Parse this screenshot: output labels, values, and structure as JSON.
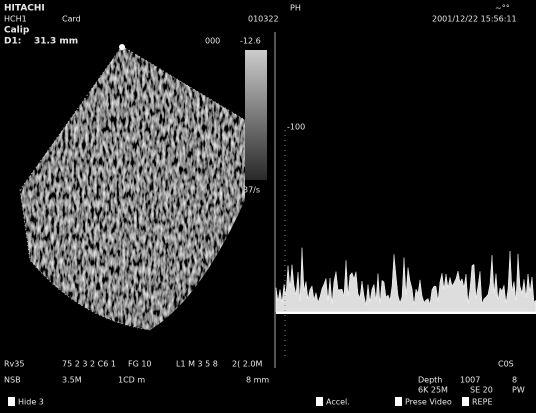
{
  "header": {
    "brand": "HITACHI",
    "probe": "HCH1",
    "preset": "Card",
    "mode": "Calip",
    "measure_label": "D1:",
    "measure_value": "31.3 mm",
    "scale_zero": "000",
    "scale_top": "-12.6",
    "center": "PH",
    "id": "010322",
    "datetime": "2001/12/22  15:56:11",
    "logo": "~°°",
    "side_label": "37/s"
  },
  "doppler": {
    "scale_label": "-100"
  },
  "footer": {
    "row1": [
      "Rv35",
      "75 2 3 2 C6 1",
      "FG 10",
      "L1 M 3 5 8",
      "2( 2.0M",
      "Depth",
      "1007",
      "8",
      "C0S"
    ],
    "row2": [
      "NSB",
      "3.5M",
      "1CD m",
      "8 mm",
      "6K 25M",
      "SE 20",
      "PW"
    ],
    "menu": [
      "Hide 3",
      "Accel.",
      "Prese Video",
      "REPE"
    ]
  }
}
